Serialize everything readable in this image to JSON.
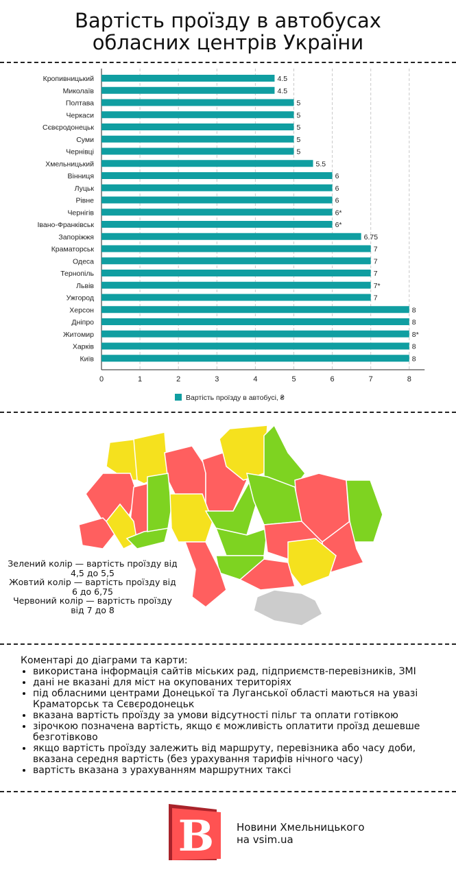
{
  "title_line1": "Вартість проїзду в автобусах",
  "title_line2": "обласних центрів України",
  "chart_data": {
    "type": "bar",
    "orientation": "horizontal",
    "categories": [
      "Кропивницький",
      "Миколаїв",
      "Полтава",
      "Черкаси",
      "Сєвєродонецьк",
      "Суми",
      "Чернівці",
      "Хмельницький",
      "Вінниця",
      "Луцьк",
      "Рівне",
      "Чернігів",
      "Івано-Франківськ",
      "Запоріжжя",
      "Краматорськ",
      "Одеса",
      "Тернопіль",
      "Львів",
      "Ужгород",
      "Херсон",
      "Дніпро",
      "Житомир",
      "Харків",
      "Київ"
    ],
    "values": [
      4.5,
      4.5,
      5,
      5,
      5,
      5,
      5,
      5.5,
      6,
      6,
      6,
      6,
      6,
      6.75,
      7,
      7,
      7,
      7,
      7,
      8,
      8,
      8,
      8,
      8
    ],
    "data_labels": [
      "4.5",
      "4.5",
      "5",
      "5",
      "5",
      "5",
      "5",
      "5.5",
      "6",
      "6",
      "6",
      "6*",
      "6*",
      "6.75",
      "7",
      "7",
      "7",
      "7*",
      "7",
      "8",
      "8",
      "8*",
      "8",
      "8"
    ],
    "series": [
      {
        "name": "Вартість проїзду в автобусі, ₴"
      }
    ],
    "xlim": [
      0,
      8.5
    ],
    "xticks": [
      "0",
      "1",
      "2",
      "3",
      "4",
      "5",
      "6",
      "7",
      "8"
    ],
    "grid": true,
    "legend_position": "bottom",
    "bar_color": "#109ea1"
  },
  "map": {
    "legend": [
      "Зелений колір — вартість проїзду від 4,5 до 5,5",
      "Жовтий колір — вартість проїзду від 6 до 6,75",
      "Червоний колір — вартість проїзду від 7 до 8"
    ],
    "colors": {
      "green": "#7ed321",
      "yellow": "#f5e11e",
      "red": "#ff5f5f",
      "gray": "#cccccc"
    }
  },
  "comments": {
    "heading": "Коментарі до діаграми та карти:",
    "items": [
      "використана інформація сайтів міських рад, підприємств-перевізників, ЗМІ",
      "дані не вказані для міст на окупованих територіях",
      "під обласними центрами Донецької та Луганської області маються на увазі Краматорськ та Сєвєродонецьк",
      "вказана вартість проїзду за умови відсутності пільг та оплати готівкою",
      "зірочкою позначена вартість, якщо є можливість оплатити проїзд дешевше безготівково",
      "якщо вартість проїзду залежить від маршруту, перевізника або часу доби, вказана середня вартість (без урахування тарифів нічного часу)",
      "вартість вказана з урахуванням маршрутних таксі"
    ]
  },
  "footer": {
    "logo_letter": "В",
    "line1": "Новини Хмельницького",
    "line2": "на vsim.ua"
  }
}
